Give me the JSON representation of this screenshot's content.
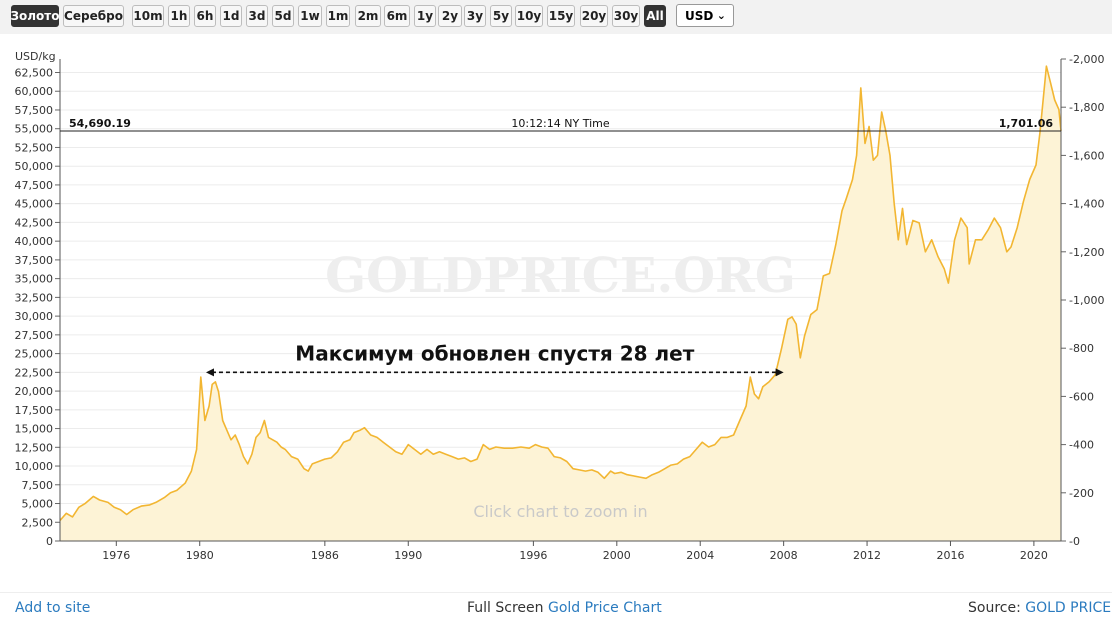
{
  "toolbar": {
    "metals": [
      {
        "label": "Золото",
        "active": true
      },
      {
        "label": "Серебро",
        "active": false
      }
    ],
    "ranges": [
      {
        "label": "10m",
        "active": false
      },
      {
        "label": "1h",
        "active": false
      },
      {
        "label": "6h",
        "active": false
      },
      {
        "label": "1d",
        "active": false
      },
      {
        "label": "3d",
        "active": false
      },
      {
        "label": "5d",
        "active": false
      },
      {
        "label": "1w",
        "active": false
      },
      {
        "label": "1m",
        "active": false
      },
      {
        "label": "2m",
        "active": false
      },
      {
        "label": "6m",
        "active": false
      },
      {
        "label": "1y",
        "active": false
      },
      {
        "label": "2y",
        "active": false
      },
      {
        "label": "3y",
        "active": false
      },
      {
        "label": "5y",
        "active": false
      },
      {
        "label": "10y",
        "active": false
      },
      {
        "label": "15y",
        "active": false
      },
      {
        "label": "20y",
        "active": false
      },
      {
        "label": "30y",
        "active": false
      },
      {
        "label": "All",
        "active": true
      }
    ],
    "currency": "USD"
  },
  "chart_data": {
    "type": "area",
    "watermark": "GOLDPRICE.ORG",
    "zoom_hint": "Click chart to zoom in",
    "y_left_unit": "USD/kg",
    "y_left_ticks": [
      "0",
      "2,500",
      "5,000",
      "7,500",
      "10,000",
      "12,500",
      "15,000",
      "17,500",
      "20,000",
      "22,500",
      "25,000",
      "27,500",
      "30,000",
      "32,500",
      "35,000",
      "37,500",
      "40,000",
      "42,500",
      "45,000",
      "47,500",
      "50,000",
      "52,500",
      "55,000",
      "57,500",
      "60,000",
      "62,500"
    ],
    "y_left_range": [
      0,
      64300
    ],
    "y_right_ticks": [
      "0",
      "200",
      "400",
      "600",
      "800",
      "1,000",
      "1,200",
      "1,400",
      "1,600",
      "1,800",
      "2,000"
    ],
    "y_right_range": [
      0,
      2000
    ],
    "x_ticks": [
      "1976",
      "1980",
      "1986",
      "1990",
      "1996",
      "2000",
      "2004",
      "2008",
      "2012",
      "2016",
      "2020"
    ],
    "x_range": [
      1973.3,
      2021.3
    ],
    "current": {
      "left_value": "54,690.19",
      "right_value": "1,701.06",
      "time": "10:12:14 NY Time",
      "value_oz": 1701.06
    },
    "annotation": {
      "text": "Максимум обновлен спустя 28 лет",
      "from_year": 1980.3,
      "to_year": 2008.0,
      "value_kg": 22500
    },
    "series": [
      {
        "units": "USD/oz",
        "points": [
          [
            1973.3,
            85
          ],
          [
            1973.6,
            115
          ],
          [
            1973.9,
            100
          ],
          [
            1974.2,
            140
          ],
          [
            1974.5,
            155
          ],
          [
            1974.9,
            185
          ],
          [
            1975.2,
            170
          ],
          [
            1975.6,
            160
          ],
          [
            1975.9,
            140
          ],
          [
            1976.2,
            130
          ],
          [
            1976.5,
            110
          ],
          [
            1976.8,
            130
          ],
          [
            1977.2,
            145
          ],
          [
            1977.6,
            150
          ],
          [
            1977.9,
            160
          ],
          [
            1978.3,
            180
          ],
          [
            1978.6,
            200
          ],
          [
            1978.9,
            210
          ],
          [
            1979.3,
            240
          ],
          [
            1979.6,
            290
          ],
          [
            1979.85,
            380
          ],
          [
            1980.05,
            680
          ],
          [
            1980.25,
            500
          ],
          [
            1980.45,
            560
          ],
          [
            1980.6,
            650
          ],
          [
            1980.75,
            660
          ],
          [
            1980.9,
            620
          ],
          [
            1981.1,
            500
          ],
          [
            1981.3,
            460
          ],
          [
            1981.5,
            420
          ],
          [
            1981.7,
            440
          ],
          [
            1981.9,
            400
          ],
          [
            1982.1,
            350
          ],
          [
            1982.3,
            320
          ],
          [
            1982.5,
            360
          ],
          [
            1982.7,
            430
          ],
          [
            1982.9,
            450
          ],
          [
            1983.1,
            500
          ],
          [
            1983.3,
            430
          ],
          [
            1983.5,
            420
          ],
          [
            1983.7,
            410
          ],
          [
            1983.9,
            390
          ],
          [
            1984.1,
            380
          ],
          [
            1984.4,
            350
          ],
          [
            1984.7,
            340
          ],
          [
            1985.0,
            300
          ],
          [
            1985.2,
            290
          ],
          [
            1985.4,
            320
          ],
          [
            1985.7,
            330
          ],
          [
            1986.0,
            340
          ],
          [
            1986.3,
            345
          ],
          [
            1986.6,
            370
          ],
          [
            1986.9,
            410
          ],
          [
            1987.2,
            420
          ],
          [
            1987.4,
            450
          ],
          [
            1987.7,
            460
          ],
          [
            1987.9,
            470
          ],
          [
            1988.2,
            440
          ],
          [
            1988.5,
            430
          ],
          [
            1988.8,
            410
          ],
          [
            1989.1,
            390
          ],
          [
            1989.4,
            370
          ],
          [
            1989.7,
            360
          ],
          [
            1990.0,
            400
          ],
          [
            1990.3,
            380
          ],
          [
            1990.6,
            360
          ],
          [
            1990.9,
            380
          ],
          [
            1991.2,
            360
          ],
          [
            1991.5,
            370
          ],
          [
            1991.8,
            360
          ],
          [
            1992.1,
            350
          ],
          [
            1992.4,
            340
          ],
          [
            1992.7,
            345
          ],
          [
            1993.0,
            330
          ],
          [
            1993.3,
            340
          ],
          [
            1993.6,
            400
          ],
          [
            1993.9,
            380
          ],
          [
            1994.2,
            390
          ],
          [
            1994.6,
            385
          ],
          [
            1995.0,
            385
          ],
          [
            1995.4,
            390
          ],
          [
            1995.8,
            385
          ],
          [
            1996.1,
            400
          ],
          [
            1996.4,
            390
          ],
          [
            1996.7,
            385
          ],
          [
            1997.0,
            350
          ],
          [
            1997.3,
            345
          ],
          [
            1997.6,
            330
          ],
          [
            1997.9,
            300
          ],
          [
            1998.2,
            295
          ],
          [
            1998.5,
            290
          ],
          [
            1998.8,
            295
          ],
          [
            1999.1,
            285
          ],
          [
            1999.4,
            260
          ],
          [
            1999.7,
            290
          ],
          [
            1999.9,
            280
          ],
          [
            2000.2,
            285
          ],
          [
            2000.5,
            275
          ],
          [
            2000.8,
            270
          ],
          [
            2001.1,
            265
          ],
          [
            2001.4,
            260
          ],
          [
            2001.7,
            275
          ],
          [
            2002.0,
            285
          ],
          [
            2002.3,
            300
          ],
          [
            2002.6,
            315
          ],
          [
            2002.9,
            320
          ],
          [
            2003.2,
            340
          ],
          [
            2003.5,
            350
          ],
          [
            2003.8,
            380
          ],
          [
            2004.1,
            410
          ],
          [
            2004.4,
            390
          ],
          [
            2004.7,
            400
          ],
          [
            2005.0,
            430
          ],
          [
            2005.3,
            430
          ],
          [
            2005.6,
            440
          ],
          [
            2005.9,
            500
          ],
          [
            2006.2,
            560
          ],
          [
            2006.4,
            680
          ],
          [
            2006.6,
            610
          ],
          [
            2006.8,
            590
          ],
          [
            2007.0,
            640
          ],
          [
            2007.3,
            660
          ],
          [
            2007.6,
            690
          ],
          [
            2007.9,
            800
          ],
          [
            2008.2,
            920
          ],
          [
            2008.4,
            930
          ],
          [
            2008.6,
            900
          ],
          [
            2008.8,
            760
          ],
          [
            2009.0,
            850
          ],
          [
            2009.3,
            940
          ],
          [
            2009.6,
            960
          ],
          [
            2009.9,
            1100
          ],
          [
            2010.2,
            1110
          ],
          [
            2010.5,
            1230
          ],
          [
            2010.8,
            1370
          ],
          [
            2011.0,
            1420
          ],
          [
            2011.3,
            1500
          ],
          [
            2011.5,
            1600
          ],
          [
            2011.7,
            1880
          ],
          [
            2011.9,
            1650
          ],
          [
            2012.1,
            1720
          ],
          [
            2012.3,
            1580
          ],
          [
            2012.5,
            1600
          ],
          [
            2012.7,
            1780
          ],
          [
            2012.9,
            1700
          ],
          [
            2013.1,
            1600
          ],
          [
            2013.3,
            1400
          ],
          [
            2013.5,
            1250
          ],
          [
            2013.7,
            1380
          ],
          [
            2013.9,
            1230
          ],
          [
            2014.2,
            1330
          ],
          [
            2014.5,
            1320
          ],
          [
            2014.8,
            1200
          ],
          [
            2015.1,
            1250
          ],
          [
            2015.4,
            1180
          ],
          [
            2015.7,
            1130
          ],
          [
            2015.9,
            1070
          ],
          [
            2016.2,
            1250
          ],
          [
            2016.5,
            1340
          ],
          [
            2016.8,
            1300
          ],
          [
            2016.9,
            1150
          ],
          [
            2017.2,
            1250
          ],
          [
            2017.5,
            1250
          ],
          [
            2017.8,
            1290
          ],
          [
            2018.1,
            1340
          ],
          [
            2018.4,
            1300
          ],
          [
            2018.7,
            1200
          ],
          [
            2018.9,
            1220
          ],
          [
            2019.2,
            1300
          ],
          [
            2019.5,
            1410
          ],
          [
            2019.8,
            1500
          ],
          [
            2020.1,
            1560
          ],
          [
            2020.3,
            1700
          ],
          [
            2020.6,
            1970
          ],
          [
            2020.8,
            1900
          ],
          [
            2021.0,
            1830
          ],
          [
            2021.2,
            1790
          ],
          [
            2021.3,
            1701
          ]
        ]
      }
    ]
  },
  "footer": {
    "add": "Add to site",
    "full_prefix": "Full Screen",
    "full_link": "Gold Price Chart",
    "source_prefix": "Source:",
    "source_link": "GOLD PRICE"
  }
}
